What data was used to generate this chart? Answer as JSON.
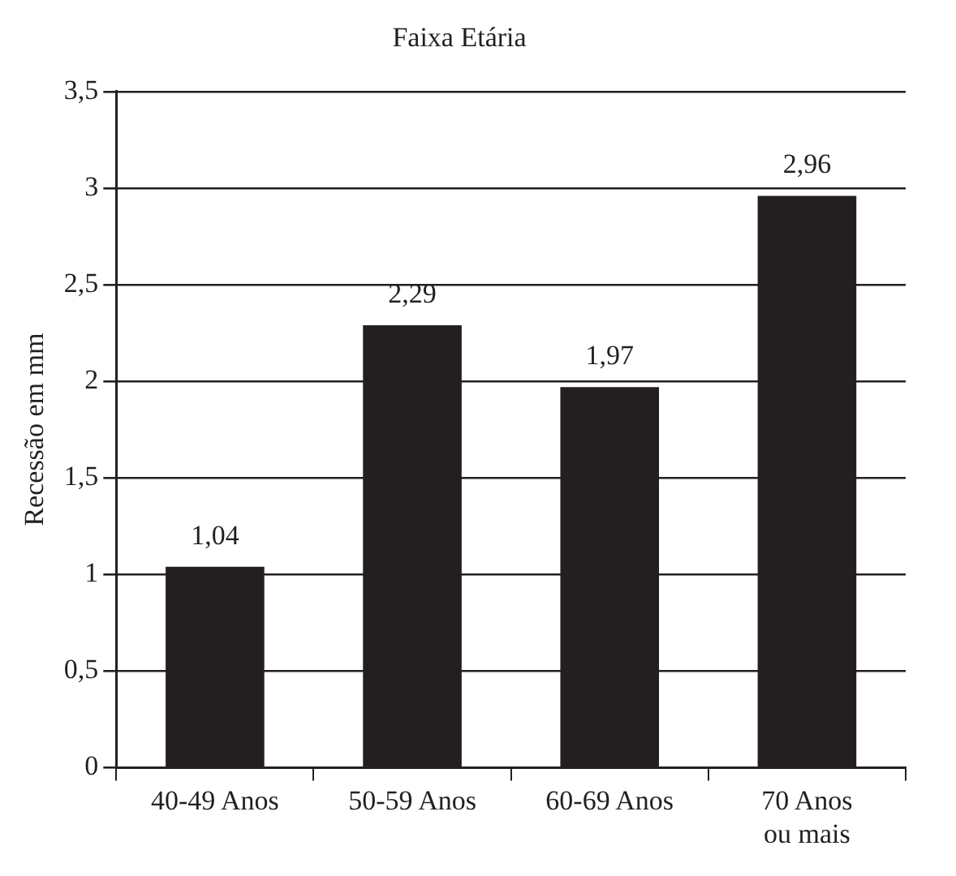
{
  "chart_data": {
    "type": "bar",
    "title": "Faixa Etária",
    "ylabel": "Recessão em mm",
    "categories": [
      "40-49 Anos",
      "50-59 Anos",
      "60-69 Anos",
      "70 Anos ou mais"
    ],
    "values": [
      1.04,
      2.29,
      1.97,
      2.96
    ],
    "value_labels": [
      "1,04",
      "2,29",
      "1,97",
      "2,96"
    ],
    "color": "#231f20",
    "ylim": [
      0,
      3.5
    ],
    "yticks": [
      0,
      {
        "value": 0.5,
        "label": "0,5"
      },
      1,
      {
        "value": 1.5,
        "label": "1,5"
      },
      2,
      {
        "value": 2.5,
        "label": "2,5"
      },
      3,
      {
        "value": 3.5,
        "label": "3,5"
      }
    ],
    "grid": "y"
  }
}
